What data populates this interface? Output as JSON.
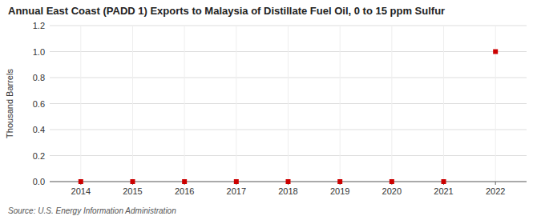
{
  "chart_data": {
    "type": "scatter",
    "title": "Annual East Coast (PADD 1) Exports to Malaysia of Distillate Fuel Oil, 0 to 15 ppm Sulfur",
    "ylabel": "Thousand Barrels",
    "source": "Source: U.S. Energy Information Administration",
    "x": [
      2014,
      2015,
      2016,
      2017,
      2018,
      2019,
      2020,
      2021,
      2022
    ],
    "values": [
      0.0,
      0.0,
      0.0,
      0.0,
      0.0,
      0.0,
      0.0,
      0.0,
      1.0
    ],
    "color": "#cc0000",
    "marker": "square",
    "xlim": [
      2013.4,
      2022.6
    ],
    "ylim": [
      0.0,
      1.2
    ],
    "xticks": [
      2014,
      2015,
      2016,
      2017,
      2018,
      2019,
      2020,
      2021,
      2022
    ],
    "yticks": [
      {
        "value": 0.0,
        "label": "0.0"
      },
      0.2,
      0.4,
      0.6,
      0.8,
      {
        "value": 1.0,
        "label": "1.0"
      },
      1.2
    ],
    "grid": true
  }
}
